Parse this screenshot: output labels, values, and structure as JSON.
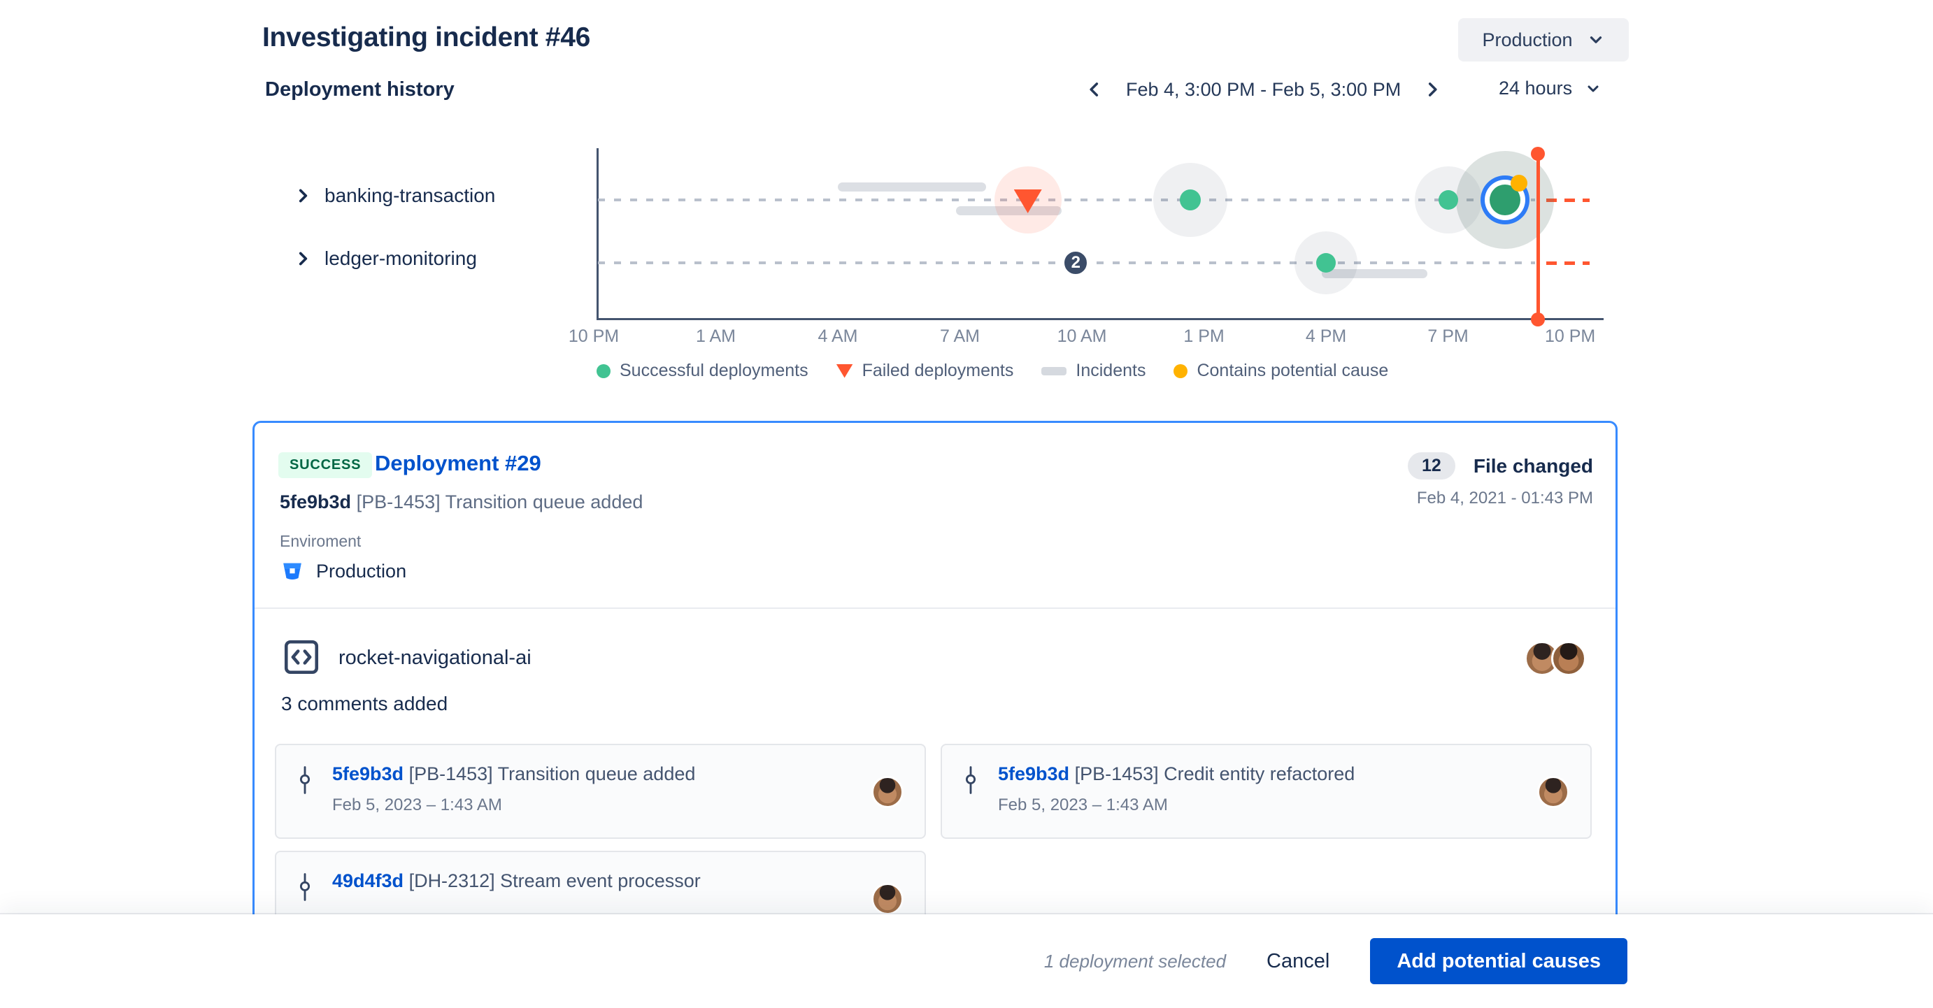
{
  "header": {
    "title": "Investigating incident #46",
    "environment_selector": "Production"
  },
  "toolbar": {
    "section_title": "Deployment history",
    "date_range": "Feb 4, 3:00 PM - Feb 5, 3:00 PM",
    "range_selector": "24 hours"
  },
  "services": [
    {
      "label": "banking-transaction"
    },
    {
      "label": "ledger-monitoring"
    }
  ],
  "chart_data": {
    "type": "timeline-scatter",
    "title": "Deployment history",
    "x_ticks": [
      "10 PM",
      "1 AM",
      "4 AM",
      "7 AM",
      "10 AM",
      "1 PM",
      "4 PM",
      "7 PM",
      "10 PM"
    ],
    "x_range_hours": 24,
    "rows": [
      "banking-transaction",
      "ledger-monitoring"
    ],
    "deployments": [
      {
        "row": 0,
        "t": 10.67,
        "status": "failed"
      },
      {
        "row": 0,
        "t": 14.66,
        "status": "success",
        "size": "large"
      },
      {
        "row": 0,
        "t": 21.0,
        "status": "success",
        "size": "small"
      },
      {
        "row": 0,
        "t": 22.4,
        "status": "success",
        "size": "selected",
        "selected": true,
        "potential_cause": true
      },
      {
        "row": 1,
        "t": 18.0,
        "status": "success",
        "size": "medium"
      }
    ],
    "incidents": [
      {
        "row": 0,
        "t_start": 6.0,
        "t_end": 9.65,
        "offset": "above"
      },
      {
        "row": 0,
        "t_start": 8.9,
        "t_end": 11.5,
        "offset": "below"
      },
      {
        "row": 1,
        "t_start": 17.9,
        "t_end": 20.5,
        "offset": "below"
      }
    ],
    "cluster_badges": [
      {
        "row": 1,
        "t": 11.85,
        "count": "2"
      }
    ],
    "now_marker": {
      "t": 23.2
    },
    "legend": [
      {
        "label": "Successful deployments",
        "marker": "green-dot"
      },
      {
        "label": "Failed deployments",
        "marker": "red-triangle"
      },
      {
        "label": "Incidents",
        "marker": "gray-bar"
      },
      {
        "label": "Contains potential cause",
        "marker": "yellow-dot"
      }
    ]
  },
  "deployment_card": {
    "status_badge": "SUCCESS",
    "title": "Deployment #29",
    "commit_hash": "5fe9b3d",
    "commit_message": "[PB-1453] Transition queue added",
    "files_changed_count": "12",
    "files_changed_label": "File changed",
    "deployed_at": "Feb 4, 2021 - 01:43 PM",
    "environment_label": "Enviroment",
    "environment_value": "Production",
    "repository": {
      "name": "rocket-navigational-ai",
      "comments_summary": "3 comments added"
    },
    "commits": [
      {
        "hash": "5fe9b3d",
        "message": "[PB-1453] Transition queue added",
        "date": "Feb 5, 2023 – 1:43 AM"
      },
      {
        "hash": "5fe9b3d",
        "message": "[PB-1453] Credit entity refactored",
        "date": "Feb 5, 2023 – 1:43 AM"
      },
      {
        "hash": "49d4f3d",
        "message": "[DH-2312] Stream event processor",
        "date": ""
      }
    ]
  },
  "footer": {
    "selection_summary": "1 deployment selected",
    "cancel_label": "Cancel",
    "primary_label": "Add potential causes"
  },
  "colors": {
    "success_green": "#41C392",
    "failed_red": "#FF5630",
    "potential_cause_yellow": "#FFB200",
    "incident_gray": "#DCDFE4",
    "link_blue": "#0052CC",
    "selected_border_blue": "#388BFF",
    "text_dark": "#172B4D"
  }
}
